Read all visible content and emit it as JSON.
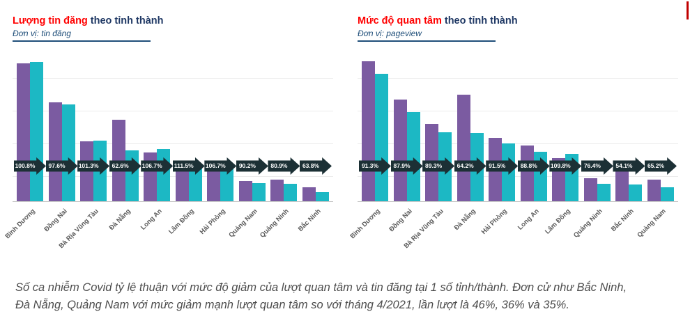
{
  "footnote": {
    "line1": "Số ca nhiễm Covid tỷ lệ thuận với mức độ giảm của lượt quan tâm và tin đăng tại 1 số tỉnh/thành. Đơn cử như Bắc Ninh,",
    "line2": "Đà Nẵng, Quảng Nam với mức giảm mạnh lượt quan tâm so với tháng 4/2021, lần lượt là 46%, 36% và 35%."
  },
  "colors": {
    "title_highlight": "#FF0000",
    "title_rest": "#1F3864",
    "subtitle": "#1F4E79",
    "bar_purple": "#7B5BA1",
    "bar_teal": "#1CB8C4",
    "arrow": "#1C3035",
    "corner_marker": "#C00000"
  },
  "chart_data": [
    {
      "type": "bar",
      "title_highlight": "Lượng tin đăng",
      "title_rest": "theo tỉnh thành",
      "subtitle": "Đơn vị: tin đăng",
      "legend": false,
      "y_axis_labels": false,
      "grid": true,
      "categories": [
        "Bình Dương",
        "Đồng Nai",
        "Bà Rịa Vũng Tàu",
        "Đà Nẵng",
        "Long An",
        "Lâm Đồng",
        "Hải Phòng",
        "Quảng Nam",
        "Quảng Ninh",
        "Bắc Ninh"
      ],
      "series": [
        {
          "name": "purple",
          "color": "#7B5BA1",
          "heights_pct": [
            96.6,
            69.3,
            42.0,
            57.1,
            34.1,
            21.5,
            22.9,
            14.1,
            15.1,
            9.8
          ]
        },
        {
          "name": "teal",
          "color": "#1CB8C4",
          "heights_pct": [
            97.4,
            67.6,
            42.5,
            35.7,
            36.4,
            24.0,
            24.4,
            12.7,
            12.2,
            6.3
          ]
        }
      ],
      "ratio_labels": [
        "100.8%",
        "97.6%",
        "101.3%",
        "62.6%",
        "106.7%",
        "111.5%",
        "106.7%",
        "90.2%",
        "80.9%",
        "63.8%"
      ]
    },
    {
      "type": "bar",
      "title_highlight": "Mức độ quan tâm",
      "title_rest": "theo tỉnh thành",
      "subtitle": "Đơn vị: pageview",
      "legend": false,
      "y_axis_labels": false,
      "grid": true,
      "categories": [
        "Bình Dương",
        "Đồng Nai",
        "Bà Rịa Vũng Tàu",
        "Đà Nẵng",
        "Hải Phòng",
        "Long An",
        "Lâm Đồng",
        "Quảng Ninh",
        "Bắc Ninh",
        "Quảng Nam"
      ],
      "series": [
        {
          "name": "purple",
          "color": "#7B5BA1",
          "heights_pct": [
            98.0,
            71.2,
            54.1,
            74.6,
            44.4,
            39.0,
            30.2,
            16.1,
            22.0,
            15.1
          ]
        },
        {
          "name": "teal",
          "color": "#1CB8C4",
          "heights_pct": [
            89.5,
            62.6,
            48.3,
            47.9,
            40.6,
            34.6,
            33.2,
            12.3,
            11.9,
            9.8
          ]
        }
      ],
      "ratio_labels": [
        "91.3%",
        "87.9%",
        "89.3%",
        "64.2%",
        "91.5%",
        "88.8%",
        "109.8%",
        "76.4%",
        "54.1%",
        "65.2%"
      ]
    }
  ]
}
